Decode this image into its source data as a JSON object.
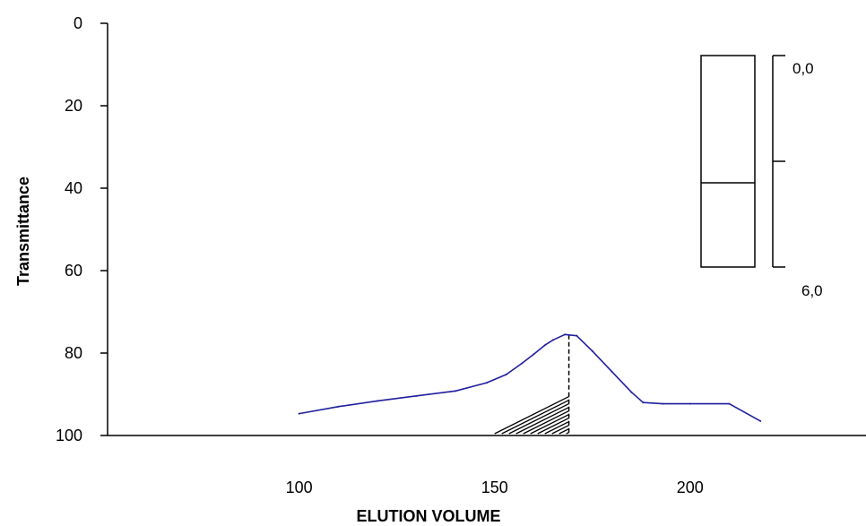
{
  "chart_data": {
    "type": "line",
    "title": "",
    "xlabel": "ELUTION VOLUME",
    "ylabel": "Transmittance",
    "xlim": [
      51,
      245
    ],
    "ylim": [
      0,
      100
    ],
    "y_inverted": true,
    "x_ticks": [
      100,
      150,
      200
    ],
    "y_ticks": [
      0,
      20,
      40,
      60,
      80,
      100
    ],
    "series": [
      {
        "color": "#1f1f9e",
        "x": [
          100,
          110,
          120,
          130,
          140,
          148,
          153,
          157,
          160,
          163,
          165,
          168,
          171,
          175,
          180,
          185,
          188,
          193,
          200,
          210,
          218
        ],
        "y": [
          94.7,
          93.0,
          91.6,
          90.4,
          89.2,
          87.2,
          85.2,
          82.5,
          80.3,
          78.0,
          76.8,
          75.5,
          75.8,
          79.5,
          84.5,
          89.5,
          92.0,
          92.3,
          92.3,
          92.3,
          96.5
        ]
      }
    ],
    "hatched_region": {
      "x_from": 150,
      "x_to": 169
    },
    "inset": {
      "scale_top_label": "0,0",
      "scale_bottom_label": "6,0"
    }
  }
}
